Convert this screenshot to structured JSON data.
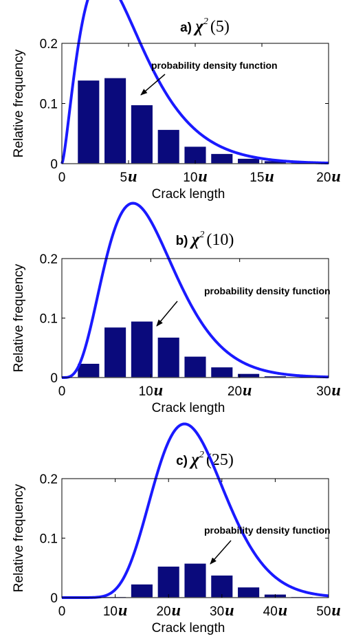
{
  "colors": {
    "bar_fill": "#0a0a7c",
    "bar_edge": "#ffffff",
    "curve": "#1a1aff",
    "axes": "#000000"
  },
  "chart_data": [
    {
      "type": "bar",
      "title_prefix": "a)",
      "title_symbol": "χ",
      "title_superscript": "2",
      "title_param": "(5)",
      "xlabel": "Crack length",
      "ylabel": "Relative frequency",
      "xlim": [
        0,
        20
      ],
      "ylim": [
        0,
        0.2
      ],
      "xticks": [
        0,
        5,
        10,
        15,
        20
      ],
      "xtick_labels": [
        "0",
        "5",
        "10",
        "15",
        "20"
      ],
      "xtick_unit": "u",
      "yticks": [
        0,
        0.1,
        0.2
      ],
      "ytick_labels": [
        "0",
        "0.1",
        "0.2"
      ],
      "bin_width": 2,
      "bin_centers": [
        2,
        4,
        6,
        8,
        10,
        12,
        14,
        16,
        18
      ],
      "values": [
        0.139,
        0.143,
        0.098,
        0.057,
        0.029,
        0.017,
        0.009,
        0.005,
        0.003
      ],
      "pdf_dof": 5,
      "pdf_scale": 2,
      "annotation": "probability density function",
      "grid": false
    },
    {
      "type": "bar",
      "title_prefix": "b)",
      "title_symbol": "χ",
      "title_superscript": "2",
      "title_param": "(10)",
      "xlabel": "Crack length",
      "ylabel": "Relative frequency",
      "xlim": [
        0,
        30
      ],
      "ylim": [
        0,
        0.2
      ],
      "xticks": [
        0,
        10,
        20,
        30
      ],
      "xtick_labels": [
        "0",
        "10",
        "20",
        "30"
      ],
      "xtick_unit": "u",
      "yticks": [
        0,
        0.1,
        0.2
      ],
      "ytick_labels": [
        "0",
        "0.1",
        "0.2"
      ],
      "bin_width": 3,
      "bin_centers": [
        3,
        6,
        9,
        12,
        15,
        18,
        21,
        24,
        27
      ],
      "values": [
        0.024,
        0.085,
        0.095,
        0.068,
        0.036,
        0.018,
        0.007,
        0.003,
        0.001
      ],
      "pdf_dof": 10,
      "pdf_scale": 3,
      "annotation": "probability density function",
      "grid": false
    },
    {
      "type": "bar",
      "title_prefix": "c)",
      "title_symbol": "χ",
      "title_superscript": "2",
      "title_param": "(25)",
      "xlabel": "Crack length",
      "ylabel": "Relative frequency",
      "xlim": [
        0,
        50
      ],
      "ylim": [
        0,
        0.2
      ],
      "xticks": [
        0,
        10,
        20,
        30,
        40,
        50
      ],
      "xtick_labels": [
        "0",
        "10",
        "20",
        "30",
        "40",
        "50"
      ],
      "xtick_unit": "u",
      "yticks": [
        0,
        0.1,
        0.2
      ],
      "ytick_labels": [
        "0",
        "0.1",
        "0.2"
      ],
      "bin_width": 5,
      "bin_centers": [
        5,
        10,
        15,
        20,
        25,
        30,
        35,
        40,
        45
      ],
      "values": [
        0.0,
        0.002,
        0.023,
        0.053,
        0.058,
        0.038,
        0.018,
        0.006,
        0.002
      ],
      "pdf_dof": 25,
      "pdf_scale": 5,
      "annotation": "probability density function",
      "grid": false
    }
  ]
}
